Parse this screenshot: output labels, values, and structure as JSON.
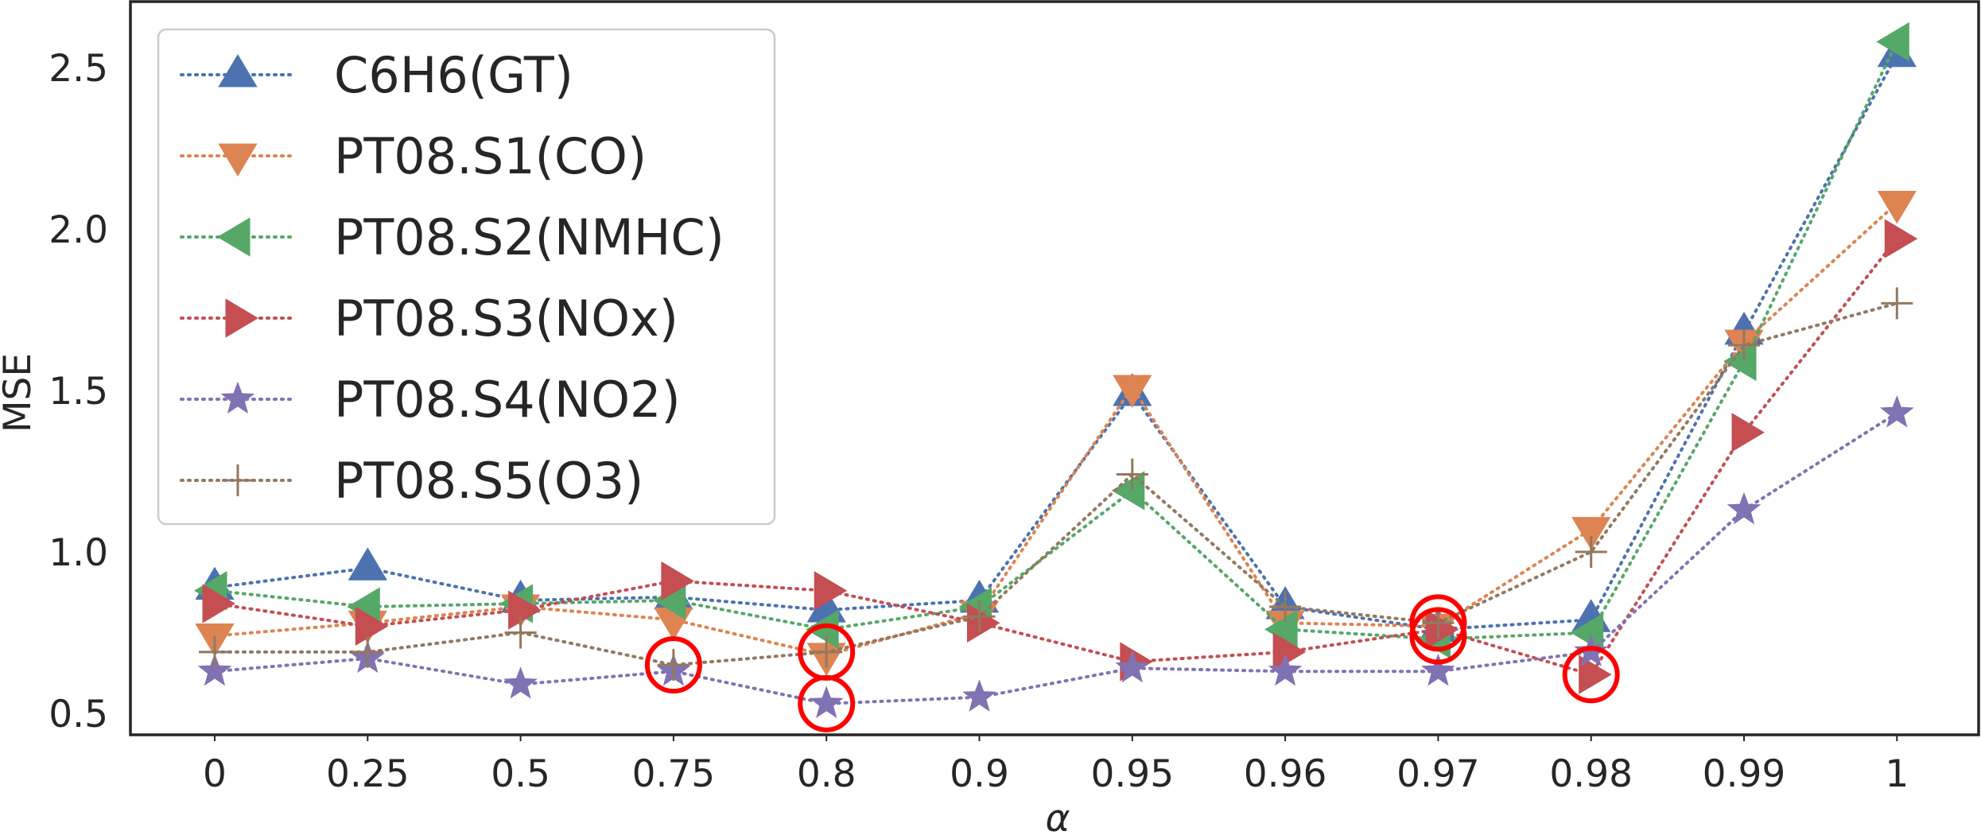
{
  "chart_data": {
    "type": "line",
    "title": "",
    "xlabel": "α",
    "ylabel": "MSE",
    "categories": [
      "0",
      "0.25",
      "0.5",
      "0.75",
      "0.8",
      "0.9",
      "0.95",
      "0.96",
      "0.97",
      "0.98",
      "0.99",
      "1"
    ],
    "yticks": [
      "0.5",
      "1.0",
      "1.5",
      "2.0",
      "2.5"
    ],
    "ylim": [
      0.45,
      2.73
    ],
    "grid": false,
    "legend_position": "top-left",
    "series": [
      {
        "name": "C6H6(GT)",
        "marker": "triangle-up",
        "color": "#4c72b0",
        "values": [
          0.89,
          0.95,
          0.85,
          0.86,
          0.82,
          0.85,
          1.49,
          0.83,
          0.76,
          0.79,
          1.68,
          2.54
        ]
      },
      {
        "name": "PT08.S1(CO)",
        "marker": "triangle-down",
        "color": "#dd8452",
        "values": [
          0.74,
          0.78,
          0.83,
          0.79,
          0.68,
          0.81,
          1.51,
          0.78,
          0.77,
          1.07,
          1.65,
          2.08
        ]
      },
      {
        "name": "PT08.S2(NMHC)",
        "marker": "triangle-left",
        "color": "#55a868",
        "values": [
          0.88,
          0.83,
          0.84,
          0.85,
          0.76,
          0.83,
          1.19,
          0.76,
          0.73,
          0.75,
          1.59,
          2.58
        ]
      },
      {
        "name": "PT08.S3(NOx)",
        "marker": "triangle-right",
        "color": "#c44e52",
        "values": [
          0.84,
          0.77,
          0.82,
          0.91,
          0.88,
          0.78,
          0.66,
          0.69,
          0.76,
          0.62,
          1.37,
          1.97
        ]
      },
      {
        "name": "PT08.S4(NO2)",
        "marker": "star",
        "color": "#8172b3",
        "values": [
          0.63,
          0.67,
          0.59,
          0.63,
          0.53,
          0.55,
          0.64,
          0.63,
          0.63,
          0.69,
          1.13,
          1.43
        ]
      },
      {
        "name": "PT08.S5(O3)",
        "marker": "plus",
        "color": "#937860",
        "values": [
          0.69,
          0.69,
          0.75,
          0.65,
          0.69,
          0.8,
          1.24,
          0.83,
          0.78,
          1.0,
          1.64,
          1.77
        ]
      }
    ],
    "annotations": [
      {
        "shape": "circle",
        "color": "#ff0000",
        "x": "0.75",
        "y": 0.65
      },
      {
        "shape": "circle",
        "color": "#ff0000",
        "x": "0.8",
        "y": 0.69
      },
      {
        "shape": "circle",
        "color": "#ff0000",
        "x": "0.8",
        "y": 0.53
      },
      {
        "shape": "circle",
        "color": "#ff0000",
        "x": "0.97",
        "y": 0.78
      },
      {
        "shape": "circle",
        "color": "#ff0000",
        "x": "0.97",
        "y": 0.74
      },
      {
        "shape": "circle",
        "color": "#ff0000",
        "x": "0.98",
        "y": 0.62
      }
    ]
  }
}
